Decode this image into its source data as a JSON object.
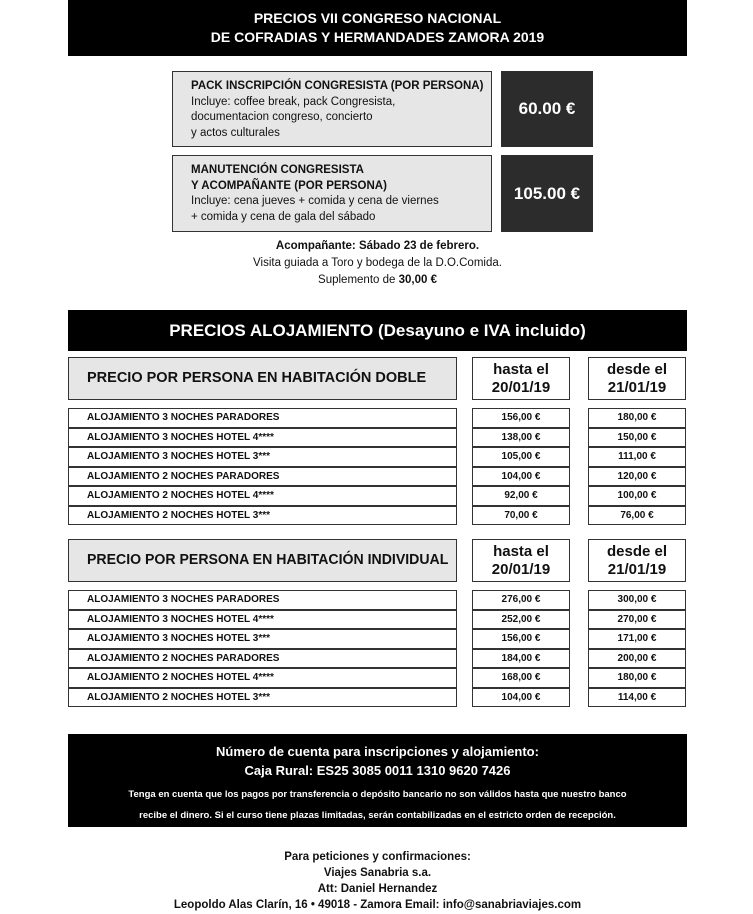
{
  "header": {
    "line1": "PRECIOS VII CONGRESO NACIONAL",
    "line2": "DE COFRADIAS Y HERMANDADES ZAMORA 2019"
  },
  "packs": [
    {
      "title_lines": [
        "PACK INSCRIPCIÓN CONGRESISTA (POR PERSONA)"
      ],
      "desc_lines": [
        "Incluye: coffee break, pack Congresista,",
        "documentacion congreso, concierto",
        "y actos culturales"
      ],
      "price": "60.00 €"
    },
    {
      "title_lines": [
        "MANUTENCIÓN CONGRESISTA",
        "Y ACOMPAÑANTE (POR PERSONA)"
      ],
      "desc_lines": [
        "Incluye: cena jueves + comida y cena de viernes",
        "+ comida y cena de gala del sábado"
      ],
      "price": "105.00 €"
    }
  ],
  "companion": {
    "line1": "Acompañante: Sábado 23 de febrero.",
    "line2": "Visita guiada a Toro y bodega de la D.O.Comida.",
    "line3_prefix": "Suplemento de ",
    "line3_amount": "30,00 €"
  },
  "lodging_title": "PRECIOS ALOJAMIENTO (Desayuno e IVA incluido)",
  "tables": [
    {
      "title": "PRECIO POR PERSONA EN HABITACIÓN DOBLE",
      "col1": [
        "hasta el",
        "20/01/19"
      ],
      "col2": [
        "desde el",
        "21/01/19"
      ],
      "rows": [
        [
          "ALOJAMIENTO 3 NOCHES PARADORES",
          "156,00 €",
          "180,00 €"
        ],
        [
          "ALOJAMIENTO 3 NOCHES HOTEL 4****",
          "138,00 €",
          "150,00 €"
        ],
        [
          "ALOJAMIENTO 3 NOCHES HOTEL 3***",
          "105,00 €",
          "111,00 €"
        ],
        [
          "ALOJAMIENTO 2 NOCHES PARADORES",
          "104,00 €",
          "120,00 €"
        ],
        [
          "ALOJAMIENTO 2 NOCHES HOTEL 4****",
          "92,00 €",
          "100,00 €"
        ],
        [
          "ALOJAMIENTO 2 NOCHES HOTEL 3***",
          "70,00 €",
          "76,00 €"
        ]
      ]
    },
    {
      "title": "PRECIO POR PERSONA EN HABITACIÓN INDIVIDUAL",
      "col1": [
        "hasta el",
        "20/01/19"
      ],
      "col2": [
        "desde el",
        "21/01/19"
      ],
      "rows": [
        [
          "ALOJAMIENTO 3 NOCHES PARADORES",
          "276,00 €",
          "300,00 €"
        ],
        [
          "ALOJAMIENTO 3 NOCHES HOTEL 4****",
          "252,00 €",
          "270,00 €"
        ],
        [
          "ALOJAMIENTO 3 NOCHES HOTEL 3***",
          "156,00 €",
          "171,00 €"
        ],
        [
          "ALOJAMIENTO 2 NOCHES PARADORES",
          "184,00 €",
          "200,00 €"
        ],
        [
          "ALOJAMIENTO 2 NOCHES HOTEL 4****",
          "168,00 €",
          "180,00 €"
        ],
        [
          "ALOJAMIENTO 2 NOCHES HOTEL 3***",
          "104,00 €",
          "114,00 €"
        ]
      ]
    }
  ],
  "bank": {
    "line1": "Número de cuenta para inscripciones y alojamiento:",
    "line2": "Caja Rural: ES25 3085 0011 1310 9620 7426",
    "line3": "Tenga en cuenta que los pagos por transferencia o depósito bancario no son válidos hasta que nuestro banco",
    "line4": "recibe el dinero. Si el curso tiene plazas limitadas, serán contabilizadas en el estricto orden de recepción."
  },
  "footer": {
    "line1": "Para peticiones y confirmaciones:",
    "line2": "Viajes Sanabria s.a.",
    "line3": "Att: Daniel Hernandez",
    "line4": "Leopoldo Alas Clarín, 16 • 49018 - Zamora Email: info@sanabriaviajes.com"
  }
}
